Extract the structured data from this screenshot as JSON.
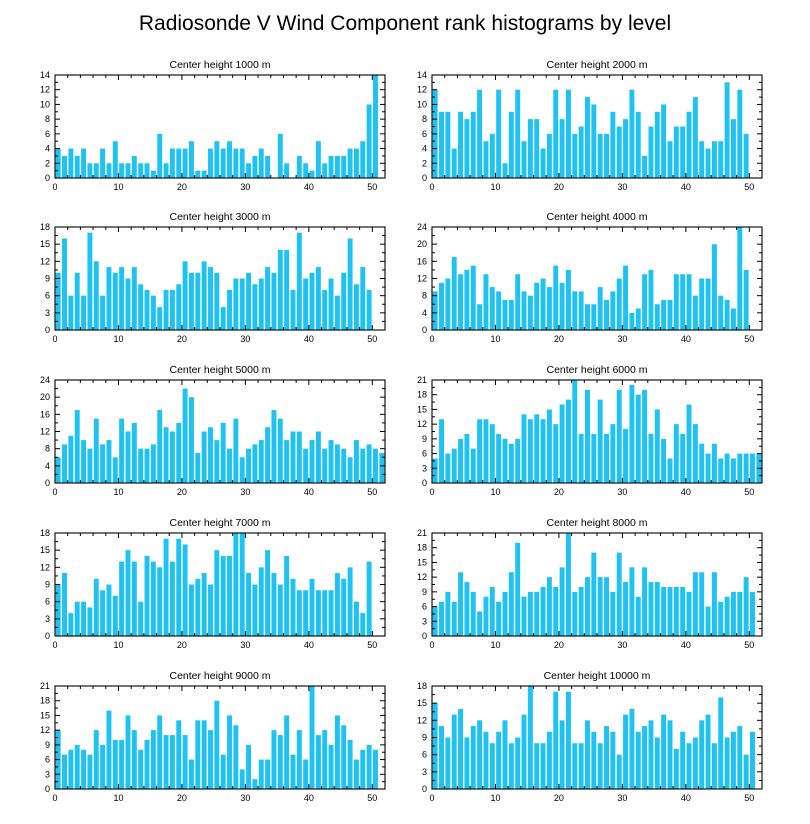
{
  "page_title": "Radiosonde V Wind Component rank histograms by level",
  "colors": {
    "bar": "#1ec3f3",
    "axis": "#000000",
    "background": "#ffffff"
  },
  "chart_data": [
    {
      "type": "bar",
      "title": "Center height 1000 m",
      "xlabel": "",
      "ylabel": "",
      "xlim": [
        0,
        52
      ],
      "ylim": [
        0,
        14
      ],
      "yticks": [
        0,
        2,
        4,
        6,
        8,
        10,
        12,
        14
      ],
      "xticks": [
        0,
        10,
        20,
        30,
        40,
        50
      ],
      "x": [
        0,
        1,
        2,
        3,
        4,
        5,
        6,
        7,
        8,
        9,
        10,
        11,
        12,
        13,
        14,
        15,
        16,
        17,
        18,
        19,
        20,
        21,
        22,
        23,
        24,
        25,
        26,
        27,
        28,
        29,
        30,
        31,
        32,
        33,
        34,
        35,
        36,
        37,
        38,
        39,
        40,
        41,
        42,
        43,
        44,
        45,
        46,
        47,
        48,
        49,
        50,
        51
      ],
      "values": [
        4,
        3,
        4,
        3,
        4,
        2,
        2,
        4,
        2,
        5,
        2,
        2,
        3,
        2,
        2,
        1,
        6,
        2,
        4,
        4,
        4,
        5,
        1,
        1,
        4,
        5,
        4,
        5,
        4,
        4,
        2,
        3,
        4,
        3,
        0,
        6,
        2,
        0,
        3,
        2,
        1,
        5,
        2,
        3,
        3,
        3,
        4,
        4,
        5,
        10,
        14,
        0
      ]
    },
    {
      "type": "bar",
      "title": "Center height 2000 m",
      "xlabel": "",
      "ylabel": "",
      "xlim": [
        0,
        52
      ],
      "ylim": [
        0,
        14
      ],
      "yticks": [
        0,
        2,
        4,
        6,
        8,
        10,
        12,
        14
      ],
      "xticks": [
        0,
        10,
        20,
        30,
        40,
        50
      ],
      "x": [
        0,
        1,
        2,
        3,
        4,
        5,
        6,
        7,
        8,
        9,
        10,
        11,
        12,
        13,
        14,
        15,
        16,
        17,
        18,
        19,
        20,
        21,
        22,
        23,
        24,
        25,
        26,
        27,
        28,
        29,
        30,
        31,
        32,
        33,
        34,
        35,
        36,
        37,
        38,
        39,
        40,
        41,
        42,
        43,
        44,
        45,
        46,
        47,
        48,
        49,
        50,
        51
      ],
      "values": [
        12,
        9,
        9,
        4,
        9,
        8,
        9,
        12,
        5,
        6,
        12,
        2,
        9,
        12,
        5,
        8,
        8,
        4,
        6,
        12,
        8,
        12,
        6,
        7,
        11,
        10,
        6,
        6,
        9,
        7,
        8,
        12,
        9,
        3,
        7,
        9,
        10,
        5,
        7,
        7,
        9,
        11,
        5,
        4,
        5,
        5,
        13,
        8,
        12,
        6,
        0,
        0
      ]
    },
    {
      "type": "bar",
      "title": "Center height 3000 m",
      "xlabel": "",
      "ylabel": "",
      "xlim": [
        0,
        52
      ],
      "ylim": [
        0,
        18
      ],
      "yticks": [
        0,
        3,
        6,
        9,
        12,
        15,
        18
      ],
      "xticks": [
        0,
        10,
        20,
        30,
        40,
        50
      ],
      "x": [
        0,
        1,
        2,
        3,
        4,
        5,
        6,
        7,
        8,
        9,
        10,
        11,
        12,
        13,
        14,
        15,
        16,
        17,
        18,
        19,
        20,
        21,
        22,
        23,
        24,
        25,
        26,
        27,
        28,
        29,
        30,
        31,
        32,
        33,
        34,
        35,
        36,
        37,
        38,
        39,
        40,
        41,
        42,
        43,
        44,
        45,
        46,
        47,
        48,
        49,
        50,
        51
      ],
      "values": [
        10,
        16,
        6,
        10,
        6,
        17,
        12,
        6,
        11,
        10,
        11,
        9,
        11,
        8,
        7,
        6,
        4,
        7,
        7,
        8,
        12,
        10,
        10,
        12,
        11,
        10,
        4,
        7,
        9,
        9,
        10,
        8,
        9,
        11,
        10,
        14,
        14,
        7,
        17,
        9,
        10,
        11,
        7,
        9,
        6,
        10,
        16,
        8,
        11,
        7,
        0,
        0
      ]
    },
    {
      "type": "bar",
      "title": "Center height 4000 m",
      "xlabel": "",
      "ylabel": "",
      "xlim": [
        0,
        52
      ],
      "ylim": [
        0,
        24
      ],
      "yticks": [
        0,
        4,
        8,
        12,
        16,
        20,
        24
      ],
      "xticks": [
        0,
        10,
        20,
        30,
        40,
        50
      ],
      "x": [
        0,
        1,
        2,
        3,
        4,
        5,
        6,
        7,
        8,
        9,
        10,
        11,
        12,
        13,
        14,
        15,
        16,
        17,
        18,
        19,
        20,
        21,
        22,
        23,
        24,
        25,
        26,
        27,
        28,
        29,
        30,
        31,
        32,
        33,
        34,
        35,
        36,
        37,
        38,
        39,
        40,
        41,
        42,
        43,
        44,
        45,
        46,
        47,
        48,
        49,
        50,
        51
      ],
      "values": [
        9,
        11,
        12,
        17,
        13,
        14,
        15,
        6,
        13,
        10,
        9,
        7,
        7,
        13,
        9,
        8,
        11,
        12,
        10,
        15,
        11,
        14,
        9,
        9,
        6,
        6,
        10,
        7,
        9,
        12,
        15,
        4,
        5,
        13,
        14,
        6,
        7,
        7,
        13,
        13,
        13,
        8,
        12,
        12,
        20,
        8,
        7,
        5,
        24,
        14,
        0,
        0
      ]
    },
    {
      "type": "bar",
      "title": "Center height 5000 m",
      "xlabel": "",
      "ylabel": "",
      "xlim": [
        0,
        52
      ],
      "ylim": [
        0,
        24
      ],
      "yticks": [
        0,
        4,
        8,
        12,
        16,
        20,
        24
      ],
      "xticks": [
        0,
        10,
        20,
        30,
        40,
        50
      ],
      "x": [
        0,
        1,
        2,
        3,
        4,
        5,
        6,
        7,
        8,
        9,
        10,
        11,
        12,
        13,
        14,
        15,
        16,
        17,
        18,
        19,
        20,
        21,
        22,
        23,
        24,
        25,
        26,
        27,
        28,
        29,
        30,
        31,
        32,
        33,
        34,
        35,
        36,
        37,
        38,
        39,
        40,
        41,
        42,
        43,
        44,
        45,
        46,
        47,
        48,
        49,
        50,
        51
      ],
      "values": [
        6,
        9,
        11,
        17,
        10,
        8,
        15,
        9,
        10,
        6,
        15,
        12,
        14,
        8,
        8,
        9,
        17,
        13,
        12,
        14,
        22,
        20,
        7,
        12,
        13,
        10,
        14,
        8,
        15,
        6,
        8,
        9,
        10,
        13,
        17,
        15,
        10,
        12,
        12,
        8,
        10,
        12,
        8,
        10,
        9,
        8,
        6,
        10,
        8,
        9,
        8,
        7
      ]
    },
    {
      "type": "bar",
      "title": "Center height 6000 m",
      "xlabel": "",
      "ylabel": "",
      "xlim": [
        0,
        52
      ],
      "ylim": [
        0,
        21
      ],
      "yticks": [
        0,
        3,
        6,
        9,
        12,
        15,
        18,
        21
      ],
      "xticks": [
        0,
        10,
        20,
        30,
        40,
        50
      ],
      "x": [
        0,
        1,
        2,
        3,
        4,
        5,
        6,
        7,
        8,
        9,
        10,
        11,
        12,
        13,
        14,
        15,
        16,
        17,
        18,
        19,
        20,
        21,
        22,
        23,
        24,
        25,
        26,
        27,
        28,
        29,
        30,
        31,
        32,
        33,
        34,
        35,
        36,
        37,
        38,
        39,
        40,
        41,
        42,
        43,
        44,
        45,
        46,
        47,
        48,
        49,
        50,
        51
      ],
      "values": [
        5,
        13,
        6,
        7,
        9,
        10,
        7,
        13,
        13,
        12,
        10,
        9,
        8,
        9,
        14,
        13,
        14,
        13,
        15,
        12,
        16,
        17,
        21,
        10,
        19,
        10,
        17,
        10,
        12,
        19,
        11,
        20,
        18,
        19,
        10,
        15,
        9,
        5,
        12,
        10,
        16,
        12,
        8,
        6,
        8,
        5,
        6,
        5,
        6,
        6,
        6,
        6
      ]
    },
    {
      "type": "bar",
      "title": "Center height 7000 m",
      "xlabel": "",
      "ylabel": "",
      "xlim": [
        0,
        52
      ],
      "ylim": [
        0,
        18
      ],
      "yticks": [
        0,
        3,
        6,
        9,
        12,
        15,
        18
      ],
      "xticks": [
        0,
        10,
        20,
        30,
        40,
        50
      ],
      "x": [
        0,
        1,
        2,
        3,
        4,
        5,
        6,
        7,
        8,
        9,
        10,
        11,
        12,
        13,
        14,
        15,
        16,
        17,
        18,
        19,
        20,
        21,
        22,
        23,
        24,
        25,
        26,
        27,
        28,
        29,
        30,
        31,
        32,
        33,
        34,
        35,
        36,
        37,
        38,
        39,
        40,
        41,
        42,
        43,
        44,
        45,
        46,
        47,
        48,
        49,
        50,
        51
      ],
      "values": [
        9,
        11,
        4,
        6,
        6,
        5,
        10,
        8,
        9,
        7,
        13,
        15,
        13,
        6,
        14,
        13,
        12,
        17,
        13,
        17,
        16,
        9,
        10,
        11,
        9,
        15,
        14,
        14,
        18,
        18,
        11,
        9,
        12,
        15,
        11,
        9,
        14,
        10,
        8,
        8,
        10,
        8,
        8,
        8,
        11,
        10,
        12,
        6,
        4,
        13,
        0,
        0
      ]
    },
    {
      "type": "bar",
      "title": "Center height 8000 m",
      "xlabel": "",
      "ylabel": "",
      "xlim": [
        0,
        52
      ],
      "ylim": [
        0,
        21
      ],
      "yticks": [
        0,
        3,
        6,
        9,
        12,
        15,
        18,
        21
      ],
      "xticks": [
        0,
        10,
        20,
        30,
        40,
        50
      ],
      "x": [
        0,
        1,
        2,
        3,
        4,
        5,
        6,
        7,
        8,
        9,
        10,
        11,
        12,
        13,
        14,
        15,
        16,
        17,
        18,
        19,
        20,
        21,
        22,
        23,
        24,
        25,
        26,
        27,
        28,
        29,
        30,
        31,
        32,
        33,
        34,
        35,
        36,
        37,
        38,
        39,
        40,
        41,
        42,
        43,
        44,
        45,
        46,
        47,
        48,
        49,
        50,
        51
      ],
      "values": [
        6,
        7,
        9,
        7,
        13,
        11,
        9,
        5,
        8,
        10,
        7,
        9,
        13,
        19,
        8,
        9,
        9,
        10,
        12,
        10,
        14,
        21,
        9,
        10,
        12,
        17,
        12,
        12,
        9,
        17,
        11,
        14,
        8,
        14,
        11,
        11,
        10,
        10,
        10,
        10,
        9,
        13,
        13,
        6,
        13,
        7,
        8,
        9,
        9,
        12,
        9,
        0
      ]
    },
    {
      "type": "bar",
      "title": "Center height 9000 m",
      "xlabel": "",
      "ylabel": "",
      "xlim": [
        0,
        52
      ],
      "ylim": [
        0,
        21
      ],
      "yticks": [
        0,
        3,
        6,
        9,
        12,
        15,
        18,
        21
      ],
      "xticks": [
        0,
        10,
        20,
        30,
        40,
        50
      ],
      "x": [
        0,
        1,
        2,
        3,
        4,
        5,
        6,
        7,
        8,
        9,
        10,
        11,
        12,
        13,
        14,
        15,
        16,
        17,
        18,
        19,
        20,
        21,
        22,
        23,
        24,
        25,
        26,
        27,
        28,
        29,
        30,
        31,
        32,
        33,
        34,
        35,
        36,
        37,
        38,
        39,
        40,
        41,
        42,
        43,
        44,
        45,
        46,
        47,
        48,
        49,
        50,
        51
      ],
      "values": [
        12,
        7,
        8,
        9,
        8,
        7,
        12,
        9,
        16,
        10,
        10,
        15,
        12,
        8,
        10,
        12,
        15,
        11,
        11,
        14,
        11,
        6,
        14,
        14,
        12,
        18,
        7,
        15,
        13,
        4,
        9,
        2,
        6,
        6,
        12,
        11,
        15,
        7,
        12,
        6,
        21,
        11,
        12,
        9,
        15,
        13,
        10,
        6,
        8,
        9,
        8,
        0
      ]
    },
    {
      "type": "bar",
      "title": "Center height 10000 m",
      "xlabel": "",
      "ylabel": "",
      "xlim": [
        0,
        52
      ],
      "ylim": [
        0,
        18
      ],
      "yticks": [
        0,
        3,
        6,
        9,
        12,
        15,
        18
      ],
      "xticks": [
        0,
        10,
        20,
        30,
        40,
        50
      ],
      "x": [
        0,
        1,
        2,
        3,
        4,
        5,
        6,
        7,
        8,
        9,
        10,
        11,
        12,
        13,
        14,
        15,
        16,
        17,
        18,
        19,
        20,
        21,
        22,
        23,
        24,
        25,
        26,
        27,
        28,
        29,
        30,
        31,
        32,
        33,
        34,
        35,
        36,
        37,
        38,
        39,
        40,
        41,
        42,
        43,
        44,
        45,
        46,
        47,
        48,
        49,
        50,
        51
      ],
      "values": [
        15,
        11,
        9,
        13,
        14,
        9,
        11,
        12,
        10,
        8,
        10,
        12,
        8,
        9,
        13,
        18,
        8,
        8,
        10,
        17,
        12,
        17,
        8,
        8,
        12,
        10,
        8,
        11,
        10,
        6,
        13,
        14,
        10,
        11,
        12,
        9,
        13,
        12,
        7,
        10,
        8,
        9,
        12,
        13,
        8,
        16,
        9,
        10,
        11,
        6,
        10,
        0
      ]
    }
  ]
}
